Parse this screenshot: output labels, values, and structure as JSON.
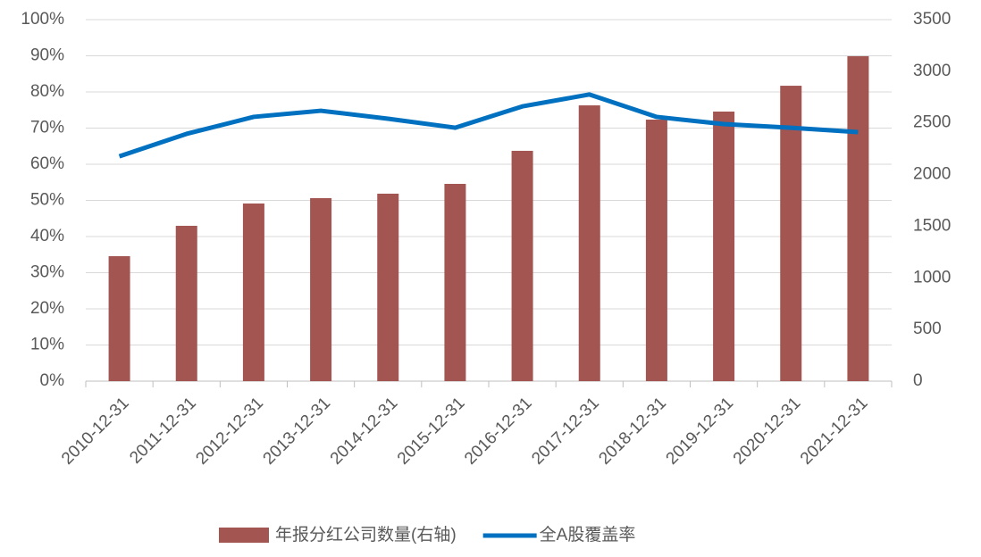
{
  "chart_data": {
    "type": "bar+line",
    "categories": [
      "2010-12-31",
      "2011-12-31",
      "2012-12-31",
      "2013-12-31",
      "2014-12-31",
      "2015-12-31",
      "2016-12-31",
      "2017-12-31",
      "2018-12-31",
      "2019-12-31",
      "2020-12-31",
      "2021-12-31"
    ],
    "series": [
      {
        "name": "年报分红公司数量(右轴)",
        "type": "bar",
        "axis": "y2",
        "color": "#a35552",
        "values": [
          1210,
          1504,
          1720,
          1772,
          1815,
          1910,
          2230,
          2670,
          2532,
          2610,
          2860,
          3146
        ]
      },
      {
        "name": "全A股覆盖率",
        "type": "line",
        "color": "#0070c0",
        "values": [
          62.2,
          68.4,
          73.1,
          74.8,
          72.6,
          70.1,
          76.0,
          79.3,
          73.1,
          71.1,
          70.1,
          68.9
        ]
      }
    ],
    "ylim": [
      0,
      100
    ],
    "yticks": [
      {
        "value": 0,
        "label": "0%"
      },
      {
        "value": 10,
        "label": "10%"
      },
      {
        "value": 20,
        "label": "20%"
      },
      {
        "value": 30,
        "label": "30%"
      },
      {
        "value": 40,
        "label": "40%"
      },
      {
        "value": 50,
        "label": "50%"
      },
      {
        "value": 60,
        "label": "60%"
      },
      {
        "value": 70,
        "label": "70%"
      },
      {
        "value": 80,
        "label": "80%"
      },
      {
        "value": 90,
        "label": "90%"
      },
      {
        "value": 100,
        "label": "100%"
      }
    ],
    "y2lim": [
      0,
      3500
    ],
    "y2ticks": [
      0,
      500,
      1000,
      1500,
      2000,
      2500,
      3000,
      3500
    ],
    "grid": true,
    "legend": "bottom"
  }
}
